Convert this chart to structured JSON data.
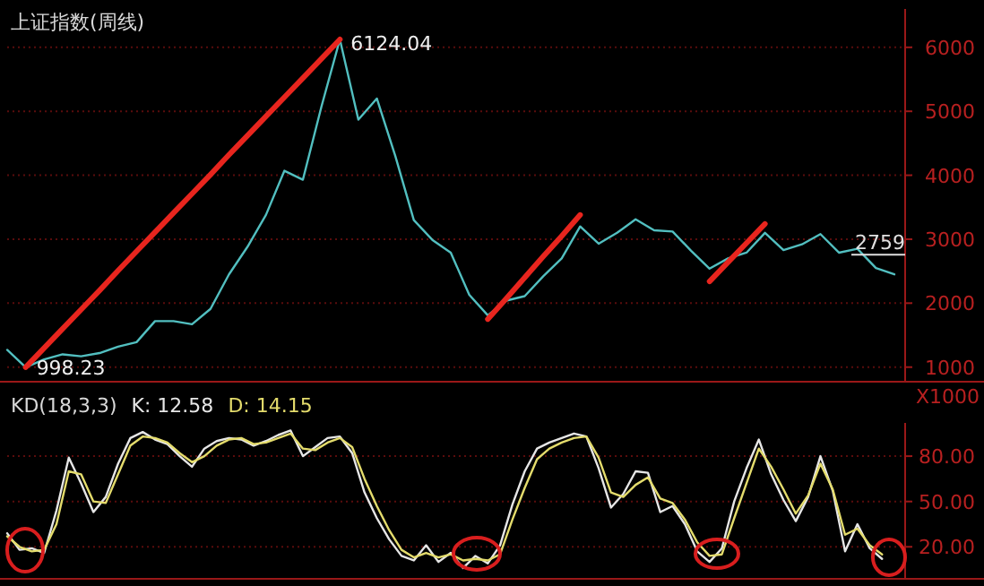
{
  "chart_data": [
    {
      "type": "line",
      "title": "上证指数(周线)",
      "categories": [
        null,
        null,
        null,
        null,
        null,
        null,
        null,
        null,
        null,
        null,
        null,
        null,
        null,
        null,
        null,
        null,
        null,
        null,
        null,
        null,
        null,
        null,
        null,
        null,
        null,
        null,
        null,
        null,
        null,
        null,
        null,
        null,
        null,
        null,
        null,
        null,
        null,
        null,
        null,
        null,
        null,
        null,
        null,
        null,
        null,
        null,
        null,
        null,
        null
      ],
      "ylim": [
        800,
        6600
      ],
      "yticks": [
        1000,
        2000,
        3000,
        4000,
        5000,
        6000
      ],
      "tick_labels": "y",
      "grid": "y",
      "series": [
        {
          "color": "#52bfc0",
          "values": [
            1270,
            998.23,
            1120,
            1200,
            1170,
            1220,
            1320,
            1390,
            1720,
            1720,
            1670,
            1910,
            2450,
            2880,
            3380,
            4070,
            3930,
            5070,
            6124.04,
            4870,
            5200,
            4300,
            3300,
            2990,
            2790,
            2130,
            1810,
            2040,
            2110,
            2420,
            2700,
            3200,
            2930,
            3100,
            3310,
            3140,
            3120,
            2820,
            2540,
            2700,
            2790,
            3100,
            2830,
            2920,
            3080,
            2790,
            2850,
            2550,
            2450
          ]
        },
        {
          "color": "#e8251e",
          "values": [
            null,
            998.23,
            1300,
            1600,
            1900,
            2200,
            2510,
            2810,
            3110,
            3410,
            3710,
            4010,
            4320,
            4620,
            4920,
            5220,
            5520,
            5820,
            6124.04,
            null,
            null,
            null,
            null,
            null,
            null,
            null,
            null,
            null,
            null,
            null,
            null,
            null,
            null,
            null,
            null,
            null,
            null,
            null,
            null,
            null,
            null,
            null,
            null,
            null,
            null,
            null,
            null,
            null,
            null
          ]
        },
        {
          "color": "#e8251e",
          "values": [
            null,
            null,
            null,
            null,
            null,
            null,
            null,
            null,
            null,
            null,
            null,
            null,
            null,
            null,
            null,
            null,
            null,
            null,
            null,
            null,
            null,
            null,
            null,
            null,
            null,
            null,
            1750,
            2070,
            2400,
            2730,
            3050,
            3380,
            null,
            null,
            null,
            null,
            null,
            null,
            null,
            null,
            null,
            null,
            null,
            null,
            null,
            null,
            null,
            null,
            null
          ]
        },
        {
          "color": "#e8251e",
          "values": [
            null,
            null,
            null,
            null,
            null,
            null,
            null,
            null,
            null,
            null,
            null,
            null,
            null,
            null,
            null,
            null,
            null,
            null,
            null,
            null,
            null,
            null,
            null,
            null,
            null,
            null,
            null,
            null,
            null,
            null,
            null,
            null,
            null,
            null,
            null,
            null,
            null,
            null,
            2340,
            2640,
            2940,
            3240,
            null,
            null,
            null,
            null,
            null,
            null,
            null
          ]
        }
      ],
      "ref_lines": [
        {
          "axis": "y",
          "value": 2759,
          "label": "2759",
          "color": "#e0e0e0"
        }
      ],
      "annotations": [
        "6124.04",
        "998.23",
        "X1000"
      ]
    },
    {
      "type": "line",
      "title": "KD(18,3,3)",
      "categories": [
        null,
        null,
        null,
        null,
        null,
        null,
        null,
        null,
        null,
        null,
        null,
        null,
        null,
        null,
        null,
        null,
        null,
        null,
        null,
        null,
        null,
        null,
        null,
        null,
        null,
        null,
        null,
        null,
        null,
        null,
        null,
        null,
        null,
        null,
        null,
        null,
        null,
        null,
        null,
        null,
        null,
        null,
        null,
        null,
        null,
        null,
        null,
        null,
        null,
        null,
        null,
        null,
        null,
        null,
        null,
        null,
        null,
        null,
        null,
        null,
        null,
        null,
        null,
        null,
        null,
        null,
        null,
        null,
        null,
        null,
        null,
        null,
        null
      ],
      "ylim": [
        0,
        102
      ],
      "yticks": [
        {
          "value": 20,
          "label": "20.00"
        },
        {
          "value": 50,
          "label": "50.00"
        },
        {
          "value": 80,
          "label": "80.00"
        }
      ],
      "tick_labels": "y",
      "grid": "y",
      "series": [
        {
          "name": "K: 12.58",
          "color": "#e6e6e6",
          "values": [
            29,
            18,
            19,
            16,
            44,
            79,
            62,
            43,
            53,
            75,
            92,
            96,
            91,
            88,
            80,
            73,
            85,
            90,
            92,
            91,
            87,
            90,
            94,
            97,
            80,
            86,
            92,
            93,
            82,
            56,
            39,
            25,
            14,
            11,
            21,
            10,
            16,
            6,
            14,
            9,
            21,
            48,
            70,
            85,
            89,
            92,
            95,
            93,
            72,
            46,
            55,
            70,
            69,
            43,
            47,
            35,
            17,
            10,
            19,
            50,
            72,
            91,
            68,
            51,
            37,
            53,
            80,
            57,
            17,
            35,
            19,
            12,
            null
          ]
        },
        {
          "name": "D: 14.15",
          "color": "#e4dc6c",
          "values": [
            27,
            20,
            17,
            18,
            35,
            70,
            68,
            50,
            49,
            68,
            87,
            93,
            92,
            89,
            82,
            76,
            80,
            87,
            91,
            92,
            88,
            89,
            92,
            95,
            85,
            84,
            89,
            92,
            86,
            65,
            47,
            31,
            18,
            13,
            16,
            13,
            15,
            11,
            12,
            11,
            15,
            38,
            59,
            78,
            85,
            89,
            92,
            93,
            79,
            56,
            53,
            61,
            66,
            52,
            49,
            38,
            23,
            14,
            15,
            39,
            62,
            85,
            73,
            58,
            42,
            54,
            75,
            58,
            28,
            32,
            21,
            15,
            null
          ]
        }
      ]
    }
  ]
}
